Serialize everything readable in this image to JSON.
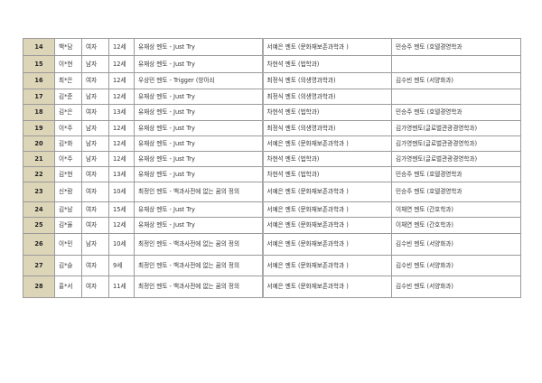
{
  "rows": [
    {
      "no": "14",
      "name": "백*담",
      "gender": "여자",
      "age": "12세",
      "mentor1": "유재상  멘토 - Just Try",
      "mentor2": "서예은  멘토 (문화재보존과학과 )",
      "mentor3": "민승주  멘토 (호텔경영학과"
    },
    {
      "no": "15",
      "name": "이*현",
      "gender": "남자",
      "age": "12세",
      "mentor1": "유재상  멘토 - Just Try",
      "mentor2": "차현석 멘토 (법학과)",
      "mentor3": ""
    },
    {
      "no": "16",
      "name": "최*은",
      "gender": "여자",
      "age": "12세",
      "mentor1": "우상민  멘토 - Trigger (방아쇠",
      "mentor2": "최정식 멘토 (의생명과학과)",
      "mentor3": "김수빈  멘토 (서양화과)"
    },
    {
      "no": "17",
      "name": "김*준",
      "gender": "남자",
      "age": "12세",
      "mentor1": "유재상  멘토 - Just Try",
      "mentor2": "최정식 멘토 (의생명과학과)",
      "mentor3": ""
    },
    {
      "no": "18",
      "name": "김*은",
      "gender": "여자",
      "age": "13세",
      "mentor1": "유재상  멘토 - Just Try",
      "mentor2": "차현석  멘토 (법학과)",
      "mentor3": "민승주  멘토 (호텔경영학과"
    },
    {
      "no": "19",
      "name": "이*주",
      "gender": "남자",
      "age": "12세",
      "mentor1": "유재상  멘토 - Just Try",
      "mentor2": "최정식 멘토 (의생명과학과)",
      "mentor3": "김가영멘토(글로벌관광경영학과)"
    },
    {
      "no": "20",
      "name": "김*화",
      "gender": "남자",
      "age": "12세",
      "mentor1": "유재상  멘토 - Just Try",
      "mentor2": "서예은  멘토 (문화재보존과학과 )",
      "mentor3": "김가영멘토(글로벌관광경영학과)"
    },
    {
      "no": "21",
      "name": "이*주",
      "gender": "남자",
      "age": "12세",
      "mentor1": "유재상  멘토 - Just Try",
      "mentor2": "차현석  멘토 (법학과)",
      "mentor3": "김가영멘토(글로벌관광경영학과)"
    },
    {
      "no": "22",
      "name": "김*현",
      "gender": "여자",
      "age": "13세",
      "mentor1": "유재상  멘토 - Just Try",
      "mentor2": "차현석  멘토 (법학과)",
      "mentor3": "민승주  멘토 (호텔경영학과"
    },
    {
      "no": "23",
      "name": "신*람",
      "gender": "여자",
      "age": "10세",
      "mentor1": "최정인  멘토 - 백과사전에 없는 꿈의 정의",
      "mentor2": "서예은  멘토 (문화재보존과학과 )",
      "mentor3": "민승주  멘토 (호텔경영학과"
    },
    {
      "no": "24",
      "name": "김*남",
      "gender": "여자",
      "age": "15세",
      "mentor1": "유재상  멘토 - Just Try",
      "mentor2": "서예은  멘토 (문화재보존과학과 )",
      "mentor3": "이채연  멘토 (간호학과)"
    },
    {
      "no": "25",
      "name": "김*율",
      "gender": "여자",
      "age": "12세",
      "mentor1": "유재상  멘토 - Just Try",
      "mentor2": "서예은  멘토 (문화재보존과학과 )",
      "mentor3": "이채연  멘토 (간호학과)"
    },
    {
      "no": "26",
      "name": "이*민",
      "gender": "남자",
      "age": "10세",
      "mentor1": "최정인  멘토 - 백과사전에 없는 꿈의 정의",
      "mentor2": "서예은  멘토 (문화재보존과학과 )",
      "mentor3": "김수빈  멘토 (서양화과)"
    },
    {
      "no": "27",
      "name": "김*슬",
      "gender": "여자",
      "age": "9세",
      "mentor1": "최정인  멘토 - 백과사전에 없는 꿈의 정의",
      "mentor2": "서예은  멘토 (문화재보존과학과 )",
      "mentor3": "김수빈  멘토 (서양화과)"
    },
    {
      "no": "28",
      "name": "홍*서",
      "gender": "여자",
      "age": "11세",
      "mentor1": "최정인  멘토 - 백과사전에 없는 꿈의 정의",
      "mentor2": "서예은  멘토 (문화재보존과학과 )",
      "mentor3": "김수빈  멘토 (서양화과)"
    }
  ],
  "colors": {
    "number_cell_bg": "#ddd5b8",
    "border": "#9a9a9a"
  }
}
